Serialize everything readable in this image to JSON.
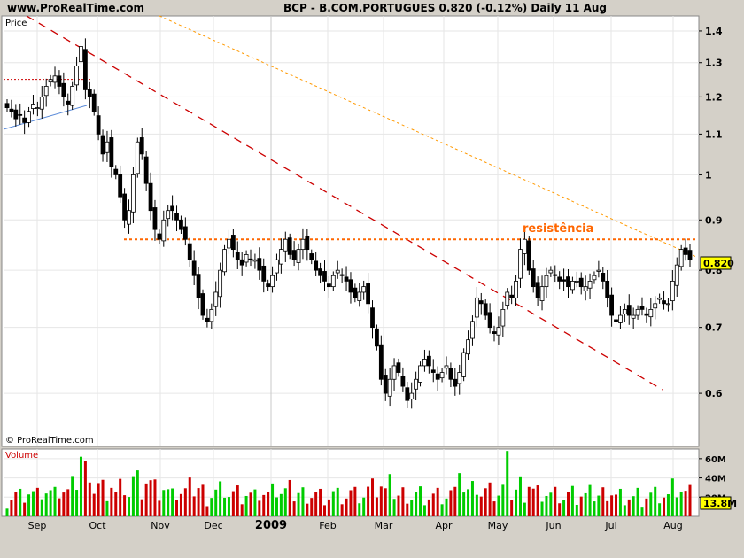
{
  "header": {
    "site": "www.ProRealTime.com",
    "title": "BCP - B.COM.PORTUGUES    0.820 (-0.12%)    Daily  11 Aug"
  },
  "price_panel": {
    "label": "Price",
    "watermark": "© ProRealTime.com",
    "annotation": "resistência",
    "last_price_label": "0.820"
  },
  "volume_panel": {
    "label": "Volume",
    "last_volume_label": "13.8M"
  },
  "colors": {
    "up": "#00cc00",
    "down": "#cc0000",
    "resistance": "#ff6600",
    "trend": "#cc0000",
    "support": "#cc0000",
    "upper_trend": "#ff9900",
    "rising": "#5b8bd9",
    "price_badge": "#ffff00"
  },
  "chart_data": [
    {
      "type": "candlestick",
      "title": "BCP - B.COM.PORTUGUES",
      "y_ticks": [
        0.6,
        0.7,
        0.8,
        0.9,
        1,
        1.1,
        1.2,
        1.3,
        1.4
      ],
      "y_tick_labels": [
        "0.6",
        "0.7",
        "0.8",
        "0.9",
        "1",
        "1.1",
        "1.2",
        "1.3",
        "1.4"
      ],
      "ylim": [
        0.53,
        1.45
      ],
      "scale": "log",
      "x_labels": [
        "Sep",
        "Oct",
        "Nov",
        "Dec",
        "2009",
        "Feb",
        "Mar",
        "Apr",
        "May",
        "Jun",
        "Jul",
        "Aug"
      ],
      "close": [
        1.17,
        1.16,
        1.14,
        1.15,
        1.13,
        1.16,
        1.18,
        1.17,
        1.2,
        1.23,
        1.25,
        1.26,
        1.23,
        1.2,
        1.18,
        1.23,
        1.29,
        1.35,
        1.22,
        1.2,
        1.16,
        1.1,
        1.05,
        1.08,
        1.02,
        1.0,
        0.95,
        0.9,
        0.92,
        1.0,
        1.08,
        1.05,
        0.98,
        0.92,
        0.88,
        0.86,
        0.9,
        0.92,
        0.92,
        0.9,
        0.88,
        0.86,
        0.82,
        0.79,
        0.75,
        0.72,
        0.71,
        0.73,
        0.76,
        0.8,
        0.84,
        0.86,
        0.84,
        0.82,
        0.81,
        0.83,
        0.82,
        0.82,
        0.8,
        0.78,
        0.77,
        0.79,
        0.82,
        0.84,
        0.86,
        0.83,
        0.82,
        0.84,
        0.86,
        0.84,
        0.82,
        0.8,
        0.79,
        0.78,
        0.77,
        0.79,
        0.8,
        0.79,
        0.78,
        0.76,
        0.75,
        0.76,
        0.77,
        0.74,
        0.7,
        0.67,
        0.62,
        0.6,
        0.62,
        0.64,
        0.63,
        0.61,
        0.59,
        0.6,
        0.62,
        0.64,
        0.65,
        0.64,
        0.63,
        0.62,
        0.63,
        0.64,
        0.62,
        0.61,
        0.63,
        0.66,
        0.68,
        0.71,
        0.75,
        0.74,
        0.72,
        0.7,
        0.69,
        0.7,
        0.73,
        0.76,
        0.75,
        0.78,
        0.84,
        0.86,
        0.8,
        0.77,
        0.75,
        0.77,
        0.79,
        0.8,
        0.79,
        0.78,
        0.78,
        0.77,
        0.78,
        0.78,
        0.77,
        0.77,
        0.78,
        0.79,
        0.8,
        0.78,
        0.75,
        0.72,
        0.71,
        0.72,
        0.73,
        0.72,
        0.72,
        0.73,
        0.73,
        0.72,
        0.73,
        0.74,
        0.75,
        0.74,
        0.74,
        0.78,
        0.81,
        0.84,
        0.83,
        0.82
      ],
      "series": [
        {
          "name": "BCP - B.COM.PORTUGUES",
          "last": 0.82
        }
      ]
    },
    {
      "type": "bar",
      "title": "Volume",
      "y_ticks": [
        20,
        40,
        60
      ],
      "y_tick_labels": [
        "20M",
        "40M",
        "60M"
      ],
      "ylim": [
        0,
        70
      ],
      "last": 13.8,
      "unit": "M"
    }
  ]
}
